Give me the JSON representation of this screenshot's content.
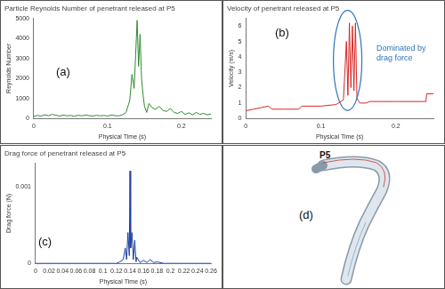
{
  "chart_data": [
    {
      "type": "line",
      "panel_label": "(a)",
      "title": "Particle Reynolds Number of penetrant released at P5",
      "x_label": "Physical Time (s)",
      "y_label": "Reynolds Number",
      "color": "#2e8b2e",
      "grid": false,
      "xlim": [
        0,
        0.24
      ],
      "xticks": [
        0,
        0.1,
        0.2
      ],
      "ylim": [
        0,
        5000
      ],
      "yticks": [
        0,
        1000,
        2000,
        3000,
        4000,
        5000
      ],
      "x": [
        0,
        0.005,
        0.01,
        0.015,
        0.02,
        0.025,
        0.03,
        0.035,
        0.04,
        0.045,
        0.05,
        0.055,
        0.06,
        0.065,
        0.07,
        0.075,
        0.08,
        0.085,
        0.09,
        0.095,
        0.1,
        0.105,
        0.11,
        0.115,
        0.12,
        0.125,
        0.13,
        0.133,
        0.136,
        0.138,
        0.14,
        0.142,
        0.144,
        0.146,
        0.148,
        0.15,
        0.153,
        0.156,
        0.16,
        0.165,
        0.17,
        0.175,
        0.18,
        0.185,
        0.19,
        0.195,
        0.2,
        0.205,
        0.21,
        0.215,
        0.22,
        0.225,
        0.23,
        0.235,
        0.24
      ],
      "values": [
        100,
        150,
        120,
        180,
        140,
        200,
        160,
        120,
        170,
        130,
        150,
        110,
        160,
        130,
        170,
        140,
        120,
        160,
        130,
        150,
        120,
        170,
        140,
        130,
        180,
        300,
        900,
        2200,
        1500,
        3200,
        4900,
        2600,
        4200,
        2000,
        1200,
        600,
        300,
        750,
        550,
        450,
        600,
        400,
        350,
        500,
        300,
        250,
        350,
        200,
        280,
        180,
        300,
        200,
        250,
        180,
        220
      ]
    },
    {
      "type": "line",
      "panel_label": "(b)",
      "title": "Velocity of penetrant released at P5",
      "x_label": "Physical Time (s)",
      "y_label": "Velocity (m/s)",
      "color": "#d62728",
      "grid": false,
      "annotations": [
        "Dominated by drag force"
      ],
      "xlim": [
        0,
        0.25
      ],
      "xticks": [
        0,
        0.1,
        0.2
      ],
      "ylim": [
        0,
        6.5
      ],
      "yticks": [
        0,
        1,
        2,
        3,
        4,
        5,
        6
      ],
      "x": [
        0,
        0.01,
        0.02,
        0.03,
        0.035,
        0.05,
        0.07,
        0.075,
        0.1,
        0.12,
        0.13,
        0.134,
        0.136,
        0.138,
        0.14,
        0.142,
        0.144,
        0.146,
        0.148,
        0.152,
        0.16,
        0.165,
        0.2,
        0.24,
        0.241,
        0.25
      ],
      "values": [
        0.5,
        0.6,
        0.7,
        0.8,
        0.6,
        0.6,
        0.6,
        0.8,
        0.8,
        0.9,
        1.2,
        5.0,
        1.5,
        6.2,
        2.0,
        6.0,
        1.8,
        6.2,
        1.3,
        1.0,
        1.0,
        1.1,
        1.1,
        1.1,
        1.6,
        1.6
      ]
    },
    {
      "type": "line",
      "panel_label": "(c)",
      "title": "Drag force of penetrant released at P5",
      "x_label": "Physical Time (s)",
      "y_label": "Drag force (N)",
      "color": "#1f3fa0",
      "grid": false,
      "xlim": [
        0,
        0.26
      ],
      "xticks": [
        0,
        0.02,
        0.04,
        0.06,
        0.08,
        0.1,
        0.12,
        0.14,
        0.16,
        0.18,
        0.2,
        0.22,
        0.24,
        0.26
      ],
      "ylim": [
        0,
        0.0013
      ],
      "yticks": [
        0,
        0.001
      ],
      "x": [
        0,
        0.12,
        0.125,
        0.13,
        0.133,
        0.135,
        0.137,
        0.139,
        0.14,
        0.141,
        0.143,
        0.145,
        0.147,
        0.149,
        0.15,
        0.155,
        0.16,
        0.165,
        0.17,
        0.175,
        0.18,
        0.19,
        0.26
      ],
      "values": [
        0,
        0,
        2e-05,
        5e-05,
        0.0002,
        5e-05,
        0.0004,
        0.0001,
        0.0012,
        0.0002,
        0.0004,
        5e-05,
        0.0003,
        2e-05,
        8e-05,
        1e-05,
        4e-05,
        1e-05,
        5e-05,
        1e-05,
        2e-05,
        0,
        0
      ]
    }
  ],
  "diagram": {
    "panel_label": "(d)",
    "label": "P5"
  }
}
